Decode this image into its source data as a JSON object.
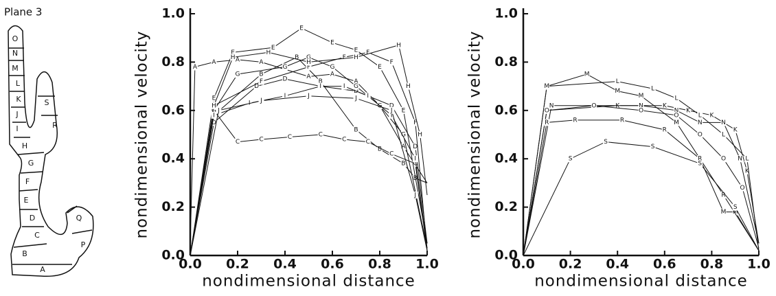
{
  "diagram": {
    "title": "Plane 3",
    "labels": [
      "A",
      "B",
      "C",
      "D",
      "E",
      "F",
      "G",
      "H",
      "I",
      "J",
      "K",
      "L",
      "M",
      "N",
      "O",
      "P",
      "Q",
      "R",
      "S"
    ]
  },
  "chart_data": [
    {
      "type": "line",
      "xlabel": "nondimensional distance",
      "ylabel": "nondimensional velocity",
      "xlim": [
        0,
        1
      ],
      "ylim": [
        0,
        1
      ],
      "xticks": [
        {
          "value": 0,
          "label": "0.0"
        },
        0.2,
        0.4,
        0.6,
        0.8,
        {
          "value": 1,
          "label": "1.0"
        }
      ],
      "yticks": [
        {
          "value": 0,
          "label": "0.0"
        },
        0.2,
        0.4,
        0.6,
        0.8,
        {
          "value": 1,
          "label": "1.0"
        }
      ],
      "color": "#111111",
      "series": [
        {
          "name": "A",
          "x": [
            0,
            0.02,
            0.1,
            0.2,
            0.3,
            0.5,
            0.6,
            0.7,
            0.8,
            0.9,
            1.0
          ],
          "values": [
            0.05,
            0.78,
            0.8,
            0.81,
            0.8,
            0.74,
            0.75,
            0.72,
            0.62,
            0.45,
            0.3
          ]
        },
        {
          "name": "B",
          "x": [
            0,
            0.1,
            0.3,
            0.45,
            0.55,
            0.7,
            0.8,
            0.9,
            0.95,
            1.0
          ],
          "values": [
            0,
            0.58,
            0.75,
            0.82,
            0.72,
            0.52,
            0.44,
            0.38,
            0.32,
            0.3
          ]
        },
        {
          "name": "C",
          "x": [
            0,
            0.1,
            0.2,
            0.3,
            0.42,
            0.55,
            0.65,
            0.75,
            0.85,
            0.95,
            1.0
          ],
          "values": [
            0,
            0.6,
            0.47,
            0.48,
            0.49,
            0.5,
            0.48,
            0.47,
            0.42,
            0.38,
            0.02
          ]
        },
        {
          "name": "D",
          "x": [
            0,
            0.1,
            0.28,
            0.4,
            0.55,
            0.7,
            0.85,
            0.95,
            1.0
          ],
          "values": [
            0,
            0.55,
            0.7,
            0.73,
            0.7,
            0.68,
            0.62,
            0.45,
            0.05
          ]
        },
        {
          "name": "E",
          "x": [
            0,
            0.1,
            0.18,
            0.35,
            0.47,
            0.6,
            0.7,
            0.8,
            0.9,
            1.0
          ],
          "values": [
            0,
            0.65,
            0.84,
            0.86,
            0.94,
            0.88,
            0.85,
            0.78,
            0.6,
            0.05
          ]
        },
        {
          "name": "F",
          "x": [
            0,
            0.1,
            0.3,
            0.5,
            0.65,
            0.75,
            0.85,
            0.95,
            1.0
          ],
          "values": [
            0,
            0.62,
            0.72,
            0.78,
            0.82,
            0.84,
            0.8,
            0.55,
            0.02
          ]
        },
        {
          "name": "G",
          "x": [
            0,
            0.1,
            0.2,
            0.4,
            0.5,
            0.6,
            0.7,
            0.8,
            0.9,
            1.0
          ],
          "values": [
            0,
            0.6,
            0.75,
            0.78,
            0.82,
            0.78,
            0.7,
            0.62,
            0.5,
            0.03
          ]
        },
        {
          "name": "H",
          "x": [
            0,
            0.1,
            0.18,
            0.33,
            0.5,
            0.7,
            0.88,
            0.92,
            0.97,
            1.0
          ],
          "values": [
            0,
            0.62,
            0.82,
            0.84,
            0.8,
            0.82,
            0.87,
            0.7,
            0.5,
            0.25
          ]
        },
        {
          "name": "I",
          "x": [
            0,
            0.1,
            0.25,
            0.4,
            0.55,
            0.65,
            0.75,
            0.85,
            0.95,
            1.0
          ],
          "values": [
            0,
            0.58,
            0.63,
            0.66,
            0.7,
            0.7,
            0.66,
            0.58,
            0.4,
            0.03
          ]
        },
        {
          "name": "J",
          "x": [
            0,
            0.12,
            0.3,
            0.5,
            0.7,
            0.85,
            0.95,
            1.0
          ],
          "values": [
            0,
            0.6,
            0.64,
            0.66,
            0.65,
            0.6,
            0.25,
            0.02
          ]
        }
      ]
    },
    {
      "type": "line",
      "xlabel": "nondimensional distance",
      "ylabel": "nondimensional velocity",
      "xlim": [
        0,
        1
      ],
      "ylim": [
        0,
        1
      ],
      "xticks": [
        {
          "value": 0,
          "label": "0.0"
        },
        0.2,
        0.4,
        0.6,
        0.8,
        {
          "value": 1,
          "label": "1.0"
        }
      ],
      "yticks": [
        {
          "value": 0,
          "label": "0.0"
        },
        0.2,
        0.4,
        0.6,
        0.8,
        {
          "value": 1,
          "label": "1.0"
        }
      ],
      "color": "#111111",
      "series": [
        {
          "name": "K",
          "x": [
            0,
            0.1,
            0.4,
            0.6,
            0.7,
            0.8,
            0.9,
            0.95,
            1.0
          ],
          "values": [
            0,
            0.6,
            0.62,
            0.62,
            0.6,
            0.58,
            0.52,
            0.35,
            0.05
          ]
        },
        {
          "name": "L",
          "x": [
            0,
            0.1,
            0.4,
            0.55,
            0.65,
            0.75,
            0.85,
            0.95,
            1.0
          ],
          "values": [
            0,
            0.7,
            0.72,
            0.69,
            0.65,
            0.58,
            0.5,
            0.4,
            0.02
          ]
        },
        {
          "name": "M",
          "x": [
            0,
            0.1,
            0.27,
            0.4,
            0.5,
            0.65,
            0.75,
            0.85,
            0.9,
            1.0
          ],
          "values": [
            0,
            0.7,
            0.75,
            0.68,
            0.66,
            0.55,
            0.4,
            0.18,
            0.18,
            0.02
          ]
        },
        {
          "name": "N",
          "x": [
            0,
            0.12,
            0.3,
            0.5,
            0.65,
            0.75,
            0.85,
            0.92,
            1.0
          ],
          "values": [
            0,
            0.62,
            0.62,
            0.62,
            0.6,
            0.55,
            0.55,
            0.4,
            0.05
          ]
        },
        {
          "name": "O",
          "x": [
            0,
            0.1,
            0.3,
            0.5,
            0.65,
            0.75,
            0.85,
            0.93,
            1.0
          ],
          "values": [
            0,
            0.6,
            0.62,
            0.6,
            0.58,
            0.5,
            0.4,
            0.28,
            0.03
          ]
        },
        {
          "name": "R",
          "x": [
            0,
            0.1,
            0.22,
            0.42,
            0.6,
            0.75,
            0.85,
            1.0
          ],
          "values": [
            0,
            0.55,
            0.56,
            0.56,
            0.52,
            0.4,
            0.25,
            0.02
          ]
        },
        {
          "name": "S",
          "x": [
            0,
            0.2,
            0.35,
            0.55,
            0.75,
            0.9,
            1.0
          ],
          "values": [
            0,
            0.4,
            0.47,
            0.45,
            0.38,
            0.2,
            0.02
          ]
        }
      ]
    }
  ]
}
